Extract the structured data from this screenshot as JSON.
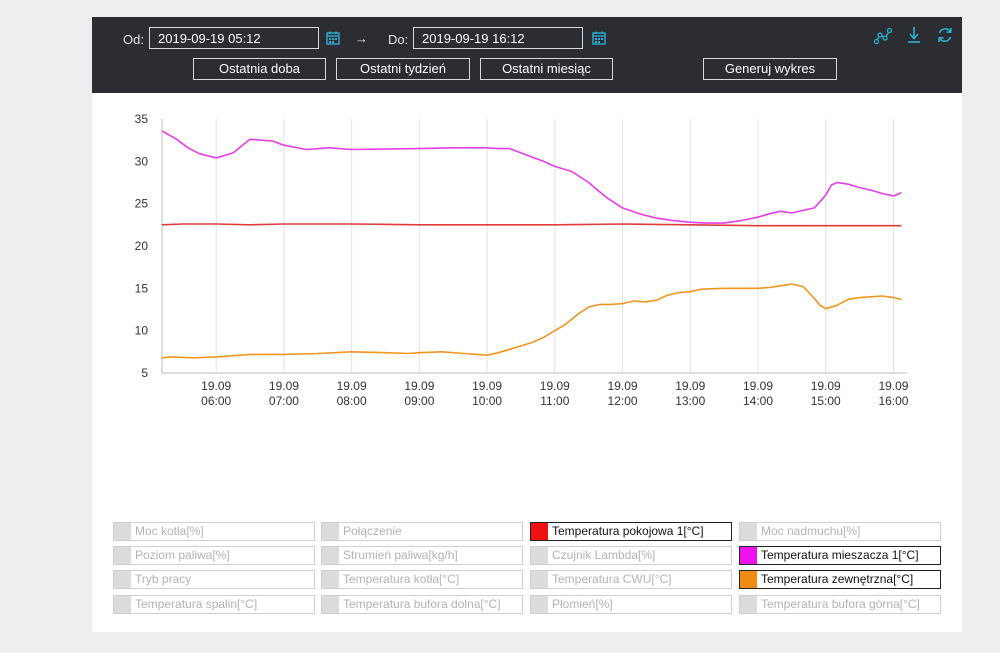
{
  "toolbar": {
    "from_label": "Od:",
    "from_value": "2019-09-19 05:12",
    "arrow": "→",
    "to_label": "Do:",
    "to_value": "2019-09-19 16:12",
    "buttons": [
      "Ostatnia doba",
      "Ostatni tydzień",
      "Ostatni miesiąc",
      "Generuj wykres"
    ],
    "icons": [
      "chart-nodes-icon",
      "download-icon",
      "refresh-icon"
    ],
    "accent": "#2ab0d6"
  },
  "chart_data": {
    "type": "line",
    "xlabel": "",
    "ylabel": "",
    "ylim": [
      5,
      35
    ],
    "yticks": [
      5,
      10,
      15,
      20,
      25,
      30,
      35
    ],
    "xlim": [
      "2019-09-19 05:12",
      "2019-09-19 16:12"
    ],
    "xticks": [
      {
        "x": "2019-09-19 06:00",
        "date": "19.09",
        "time": "06:00"
      },
      {
        "x": "2019-09-19 07:00",
        "date": "19.09",
        "time": "07:00"
      },
      {
        "x": "2019-09-19 08:00",
        "date": "19.09",
        "time": "08:00"
      },
      {
        "x": "2019-09-19 09:00",
        "date": "19.09",
        "time": "09:00"
      },
      {
        "x": "2019-09-19 10:00",
        "date": "19.09",
        "time": "10:00"
      },
      {
        "x": "2019-09-19 11:00",
        "date": "19.09",
        "time": "11:00"
      },
      {
        "x": "2019-09-19 12:00",
        "date": "19.09",
        "time": "12:00"
      },
      {
        "x": "2019-09-19 13:00",
        "date": "19.09",
        "time": "13:00"
      },
      {
        "x": "2019-09-19 14:00",
        "date": "19.09",
        "time": "14:00"
      },
      {
        "x": "2019-09-19 15:00",
        "date": "19.09",
        "time": "15:00"
      },
      {
        "x": "2019-09-19 16:00",
        "date": "19.09",
        "time": "16:00"
      }
    ],
    "grid": true,
    "series": [
      {
        "name": "Temperatura pokojowa 1[°C]",
        "color": "#e03a3a",
        "x": [
          "2019-09-19 05:12",
          "2019-09-19 05:30",
          "2019-09-19 06:00",
          "2019-09-19 06:30",
          "2019-09-19 07:00",
          "2019-09-19 08:00",
          "2019-09-19 09:00",
          "2019-09-19 10:00",
          "2019-09-19 11:00",
          "2019-09-19 12:00",
          "2019-09-19 13:00",
          "2019-09-19 14:00",
          "2019-09-19 15:00",
          "2019-09-19 16:00",
          "2019-09-19 16:07"
        ],
        "y": [
          22.5,
          22.6,
          22.6,
          22.5,
          22.6,
          22.6,
          22.5,
          22.5,
          22.5,
          22.6,
          22.5,
          22.4,
          22.4,
          22.4,
          22.4
        ]
      },
      {
        "name": "Temperatura mieszacza 1[°C]",
        "color": "#e63ee6",
        "x": [
          "2019-09-19 05:12",
          "2019-09-19 05:25",
          "2019-09-19 05:35",
          "2019-09-19 05:45",
          "2019-09-19 06:00",
          "2019-09-19 06:05",
          "2019-09-19 06:10",
          "2019-09-19 06:15",
          "2019-09-19 06:30",
          "2019-09-19 06:40",
          "2019-09-19 06:50",
          "2019-09-19 07:00",
          "2019-09-19 07:20",
          "2019-09-19 07:40",
          "2019-09-19 08:00",
          "2019-09-19 09:00",
          "2019-09-19 09:30",
          "2019-09-19 10:00",
          "2019-09-19 10:10",
          "2019-09-19 10:20",
          "2019-09-19 10:30",
          "2019-09-19 10:40",
          "2019-09-19 10:50",
          "2019-09-19 11:00",
          "2019-09-19 11:15",
          "2019-09-19 11:30",
          "2019-09-19 11:45",
          "2019-09-19 12:00",
          "2019-09-19 12:15",
          "2019-09-19 12:30",
          "2019-09-19 12:45",
          "2019-09-19 13:00",
          "2019-09-19 13:15",
          "2019-09-19 13:30",
          "2019-09-19 13:45",
          "2019-09-19 14:00",
          "2019-09-19 14:10",
          "2019-09-19 14:20",
          "2019-09-19 14:30",
          "2019-09-19 14:40",
          "2019-09-19 14:50",
          "2019-09-19 15:00",
          "2019-09-19 15:05",
          "2019-09-19 15:10",
          "2019-09-19 15:20",
          "2019-09-19 15:30",
          "2019-09-19 15:40",
          "2019-09-19 15:50",
          "2019-09-19 16:00",
          "2019-09-19 16:07"
        ],
        "y": [
          33.6,
          32.6,
          31.6,
          30.9,
          30.4,
          30.6,
          30.8,
          31.0,
          32.6,
          32.5,
          32.4,
          31.9,
          31.4,
          31.6,
          31.4,
          31.5,
          31.6,
          31.6,
          31.5,
          31.5,
          31.0,
          30.5,
          30.0,
          29.4,
          28.8,
          27.5,
          25.8,
          24.5,
          23.8,
          23.3,
          23.0,
          22.8,
          22.7,
          22.7,
          23.0,
          23.4,
          23.8,
          24.1,
          23.9,
          24.2,
          24.5,
          26.0,
          27.2,
          27.5,
          27.3,
          26.9,
          26.6,
          26.2,
          25.9,
          26.3
        ]
      },
      {
        "name": "Temperatura zewnętrzna[°C]",
        "color": "#f0961e",
        "x": [
          "2019-09-19 05:12",
          "2019-09-19 05:20",
          "2019-09-19 05:40",
          "2019-09-19 06:00",
          "2019-09-19 06:30",
          "2019-09-19 07:00",
          "2019-09-19 07:30",
          "2019-09-19 08:00",
          "2019-09-19 08:30",
          "2019-09-19 08:50",
          "2019-09-19 09:00",
          "2019-09-19 09:20",
          "2019-09-19 09:40",
          "2019-09-19 10:00",
          "2019-09-19 10:10",
          "2019-09-19 10:20",
          "2019-09-19 10:30",
          "2019-09-19 10:40",
          "2019-09-19 10:50",
          "2019-09-19 11:00",
          "2019-09-19 11:10",
          "2019-09-19 11:20",
          "2019-09-19 11:30",
          "2019-09-19 11:40",
          "2019-09-19 11:50",
          "2019-09-19 12:00",
          "2019-09-19 12:10",
          "2019-09-19 12:20",
          "2019-09-19 12:30",
          "2019-09-19 12:40",
          "2019-09-19 12:50",
          "2019-09-19 13:00",
          "2019-09-19 13:10",
          "2019-09-19 13:30",
          "2019-09-19 13:50",
          "2019-09-19 14:00",
          "2019-09-19 14:10",
          "2019-09-19 14:20",
          "2019-09-19 14:30",
          "2019-09-19 14:40",
          "2019-09-19 14:50",
          "2019-09-19 14:55",
          "2019-09-19 15:00",
          "2019-09-19 15:10",
          "2019-09-19 15:20",
          "2019-09-19 15:30",
          "2019-09-19 15:40",
          "2019-09-19 15:50",
          "2019-09-19 16:00",
          "2019-09-19 16:07"
        ],
        "y": [
          6.8,
          6.9,
          6.8,
          6.9,
          7.2,
          7.2,
          7.3,
          7.5,
          7.4,
          7.3,
          7.4,
          7.5,
          7.3,
          7.1,
          7.4,
          7.8,
          8.2,
          8.6,
          9.2,
          10.0,
          10.8,
          11.9,
          12.8,
          13.1,
          13.1,
          13.2,
          13.5,
          13.4,
          13.6,
          14.2,
          14.5,
          14.6,
          14.9,
          15.0,
          15.0,
          15.0,
          15.1,
          15.3,
          15.5,
          15.2,
          13.8,
          13.0,
          12.6,
          13.0,
          13.7,
          13.9,
          14.0,
          14.1,
          13.9,
          13.7
        ]
      }
    ]
  },
  "legend": [
    {
      "label": "Moc kotła[%]",
      "active": false,
      "color": "#dcdcdc"
    },
    {
      "label": "Połączenie",
      "active": false,
      "color": "#dcdcdc"
    },
    {
      "label": "Temperatura pokojowa 1[°C]",
      "active": true,
      "color": "#ee1111"
    },
    {
      "label": "Moc nadmuchu[%]",
      "active": false,
      "color": "#dcdcdc"
    },
    {
      "label": "Poziom paliwa[%]",
      "active": false,
      "color": "#dcdcdc"
    },
    {
      "label": "Strumień paliwa[kg/h]",
      "active": false,
      "color": "#dcdcdc"
    },
    {
      "label": "Czujnik Lambda[%]",
      "active": false,
      "color": "#dcdcdc"
    },
    {
      "label": "Temperatura mieszacza 1[°C]",
      "active": true,
      "color": "#ee11ee"
    },
    {
      "label": "Tryb pracy",
      "active": false,
      "color": "#dcdcdc"
    },
    {
      "label": "Temperatura kotła[°C]",
      "active": false,
      "color": "#dcdcdc"
    },
    {
      "label": "Temperatura CWU[°C]",
      "active": false,
      "color": "#dcdcdc"
    },
    {
      "label": "Temperatura zewnętrzna[°C]",
      "active": true,
      "color": "#f08c14"
    },
    {
      "label": "Temperatura spalin[°C]",
      "active": false,
      "color": "#dcdcdc"
    },
    {
      "label": "Temperatura bufora dolna[°C]",
      "active": false,
      "color": "#dcdcdc"
    },
    {
      "label": "Płomień[%]",
      "active": false,
      "color": "#dcdcdc"
    },
    {
      "label": "Temperatura bufora górna[°C]",
      "active": false,
      "color": "#dcdcdc"
    }
  ]
}
